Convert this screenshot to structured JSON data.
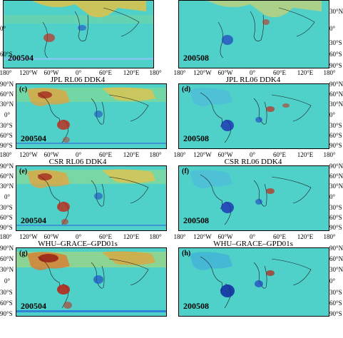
{
  "panels_row0": [
    {
      "date": "200504"
    },
    {
      "date": "200508"
    }
  ],
  "rows": [
    {
      "title_left": "JPL RL06 DDK4",
      "title_right": "JPL RL06 DDK4",
      "panels": [
        {
          "letter": "(c)",
          "date": "200504"
        },
        {
          "letter": "(d)",
          "date": "200508"
        }
      ]
    },
    {
      "title_left": "CSR RL06 DDK4",
      "title_right": "CSR RL06 DDK4",
      "panels": [
        {
          "letter": "(e)",
          "date": "200504"
        },
        {
          "letter": "(f)",
          "date": "200508"
        }
      ]
    },
    {
      "title_left": "WHU–GRACE–GPD01s",
      "title_right": "WHU–GRACE–GPD01s",
      "panels": [
        {
          "letter": "(g)",
          "date": "200504"
        },
        {
          "letter": "(h)",
          "date": "200508"
        }
      ]
    }
  ],
  "lon_ticks": [
    "180°",
    "120°W",
    "60°W",
    "0°",
    "60°E",
    "120°E",
    "180°"
  ],
  "lat_ticks": [
    "90°N",
    "60°N",
    "30°N",
    "0°",
    "30°S",
    "60°S",
    "90°S"
  ],
  "lat_ticks_top": [
    "30°N",
    "0°",
    "30°S",
    "60°S",
    "90°S"
  ]
}
